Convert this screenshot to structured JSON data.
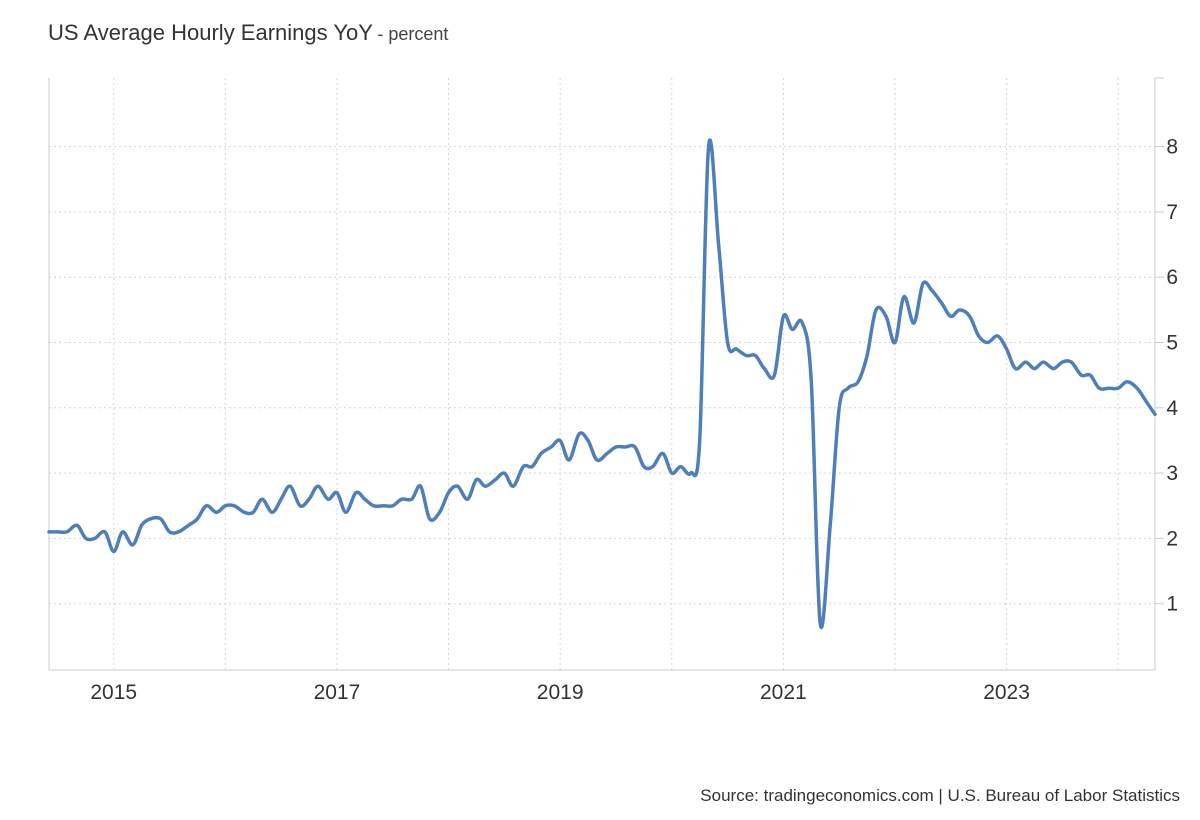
{
  "chart_data": {
    "type": "line",
    "title": "US Average Hourly Earnings YoY",
    "subtitle": "- percent",
    "xlabel": "",
    "ylabel": "",
    "xlim": [
      2014.42,
      2024.33
    ],
    "ylim": [
      0,
      9
    ],
    "y_ticks": [
      1,
      2,
      3,
      4,
      5,
      6,
      7,
      8
    ],
    "x_ticks": [
      {
        "value": 2015,
        "label": "2015"
      },
      {
        "value": 2017,
        "label": "2017"
      },
      {
        "value": 2019,
        "label": "2019"
      },
      {
        "value": 2021,
        "label": "2021"
      },
      {
        "value": 2023,
        "label": "2023"
      }
    ],
    "x_grid": [
      2015,
      2016,
      2017,
      2018,
      2019,
      2020,
      2021,
      2022,
      2023,
      2024
    ],
    "grid": true,
    "line_color": "#4e7fbb",
    "series": [
      {
        "name": "",
        "points": [
          [
            2014.42,
            2.1
          ],
          [
            2014.5,
            2.1
          ],
          [
            2014.58,
            2.1
          ],
          [
            2014.67,
            2.2
          ],
          [
            2014.75,
            2.0
          ],
          [
            2014.83,
            2.0
          ],
          [
            2014.92,
            2.1
          ],
          [
            2015.0,
            1.8
          ],
          [
            2015.08,
            2.1
          ],
          [
            2015.17,
            1.9
          ],
          [
            2015.25,
            2.2
          ],
          [
            2015.33,
            2.3
          ],
          [
            2015.42,
            2.3
          ],
          [
            2015.5,
            2.1
          ],
          [
            2015.58,
            2.1
          ],
          [
            2015.67,
            2.2
          ],
          [
            2015.75,
            2.3
          ],
          [
            2015.83,
            2.5
          ],
          [
            2015.92,
            2.4
          ],
          [
            2016.0,
            2.5
          ],
          [
            2016.08,
            2.5
          ],
          [
            2016.17,
            2.4
          ],
          [
            2016.25,
            2.4
          ],
          [
            2016.33,
            2.6
          ],
          [
            2016.42,
            2.4
          ],
          [
            2016.5,
            2.6
          ],
          [
            2016.58,
            2.8
          ],
          [
            2016.67,
            2.5
          ],
          [
            2016.75,
            2.6
          ],
          [
            2016.83,
            2.8
          ],
          [
            2016.92,
            2.6
          ],
          [
            2017.0,
            2.7
          ],
          [
            2017.08,
            2.4
          ],
          [
            2017.17,
            2.7
          ],
          [
            2017.25,
            2.6
          ],
          [
            2017.33,
            2.5
          ],
          [
            2017.42,
            2.5
          ],
          [
            2017.5,
            2.5
          ],
          [
            2017.58,
            2.6
          ],
          [
            2017.67,
            2.6
          ],
          [
            2017.75,
            2.8
          ],
          [
            2017.83,
            2.3
          ],
          [
            2017.92,
            2.4
          ],
          [
            2018.0,
            2.7
          ],
          [
            2018.08,
            2.8
          ],
          [
            2018.17,
            2.6
          ],
          [
            2018.25,
            2.9
          ],
          [
            2018.33,
            2.8
          ],
          [
            2018.42,
            2.9
          ],
          [
            2018.5,
            3.0
          ],
          [
            2018.58,
            2.8
          ],
          [
            2018.67,
            3.1
          ],
          [
            2018.75,
            3.1
          ],
          [
            2018.83,
            3.3
          ],
          [
            2018.92,
            3.4
          ],
          [
            2019.0,
            3.5
          ],
          [
            2019.08,
            3.2
          ],
          [
            2019.17,
            3.6
          ],
          [
            2019.25,
            3.5
          ],
          [
            2019.33,
            3.2
          ],
          [
            2019.42,
            3.3
          ],
          [
            2019.5,
            3.4
          ],
          [
            2019.58,
            3.4
          ],
          [
            2019.67,
            3.4
          ],
          [
            2019.75,
            3.1
          ],
          [
            2019.83,
            3.1
          ],
          [
            2019.92,
            3.3
          ],
          [
            2020.0,
            3.0
          ],
          [
            2020.08,
            3.1
          ],
          [
            2020.17,
            3.0
          ],
          [
            2020.25,
            3.5
          ],
          [
            2020.33,
            8.0
          ],
          [
            2020.42,
            6.5
          ],
          [
            2020.5,
            5.0
          ],
          [
            2020.58,
            4.9
          ],
          [
            2020.67,
            4.8
          ],
          [
            2020.75,
            4.8
          ],
          [
            2020.83,
            4.6
          ],
          [
            2020.92,
            4.5
          ],
          [
            2021.0,
            5.4
          ],
          [
            2021.08,
            5.2
          ],
          [
            2021.17,
            5.3
          ],
          [
            2021.25,
            4.4
          ],
          [
            2021.33,
            0.7
          ],
          [
            2021.42,
            2.2
          ],
          [
            2021.5,
            4.0
          ],
          [
            2021.58,
            4.3
          ],
          [
            2021.67,
            4.4
          ],
          [
            2021.75,
            4.8
          ],
          [
            2021.83,
            5.5
          ],
          [
            2021.92,
            5.4
          ],
          [
            2022.0,
            5.0
          ],
          [
            2022.08,
            5.7
          ],
          [
            2022.17,
            5.3
          ],
          [
            2022.25,
            5.9
          ],
          [
            2022.33,
            5.8
          ],
          [
            2022.42,
            5.6
          ],
          [
            2022.5,
            5.4
          ],
          [
            2022.58,
            5.5
          ],
          [
            2022.67,
            5.4
          ],
          [
            2022.75,
            5.1
          ],
          [
            2022.83,
            5.0
          ],
          [
            2022.92,
            5.1
          ],
          [
            2023.0,
            4.9
          ],
          [
            2023.08,
            4.6
          ],
          [
            2023.17,
            4.7
          ],
          [
            2023.25,
            4.6
          ],
          [
            2023.33,
            4.7
          ],
          [
            2023.42,
            4.6
          ],
          [
            2023.5,
            4.7
          ],
          [
            2023.58,
            4.7
          ],
          [
            2023.67,
            4.5
          ],
          [
            2023.75,
            4.5
          ],
          [
            2023.83,
            4.3
          ],
          [
            2023.92,
            4.3
          ],
          [
            2024.0,
            4.3
          ],
          [
            2024.08,
            4.4
          ],
          [
            2024.17,
            4.3
          ],
          [
            2024.25,
            4.1
          ],
          [
            2024.33,
            3.9
          ]
        ]
      }
    ]
  },
  "footer": {
    "source": "Source: tradingeconomics.com | U.S. Bureau of Labor Statistics"
  }
}
